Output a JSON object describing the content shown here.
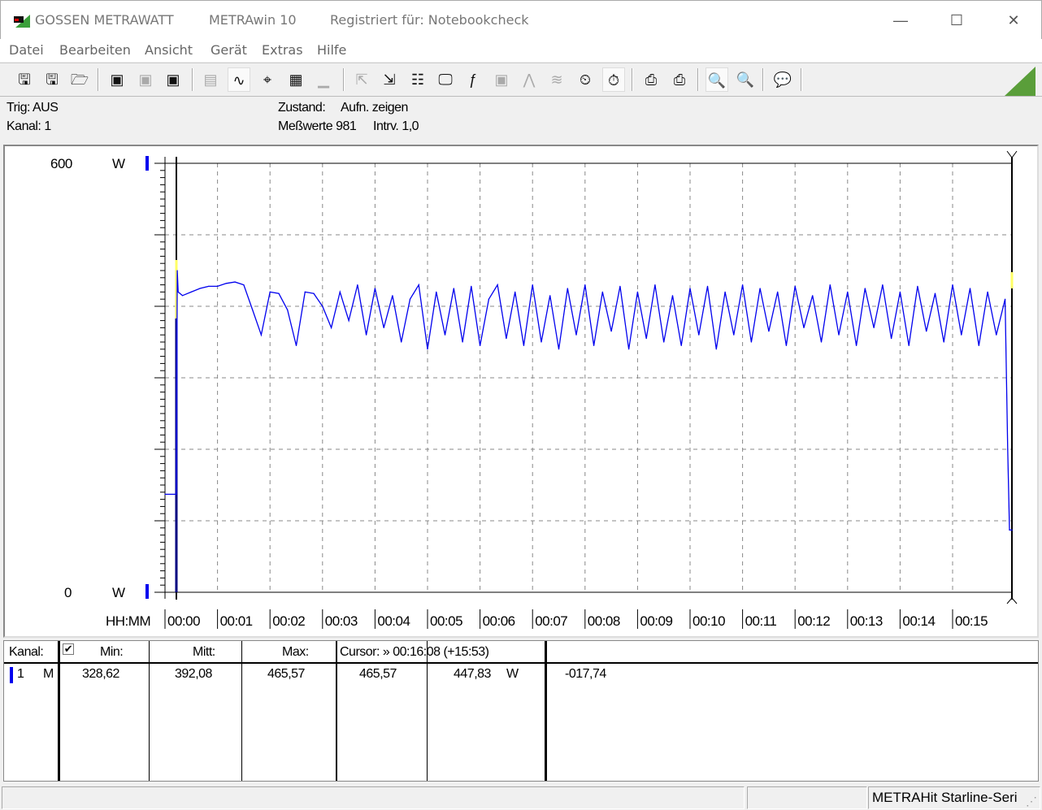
{
  "titlebar": {
    "brand": "GOSSEN METRAWATT",
    "app": "METRAwin 10",
    "registered": "Registriert für: Notebookcheck"
  },
  "menu": [
    "Datei",
    "Bearbeiten",
    "Ansicht",
    "Gerät",
    "Extras",
    "Hilfe"
  ],
  "toolbar": [
    {
      "icon": "save-icon",
      "glyph": "🖫"
    },
    {
      "icon": "save-as-icon",
      "glyph": "🖫"
    },
    {
      "icon": "open-folder-icon",
      "glyph": "🗁"
    },
    {
      "icon": "device-readout-icon",
      "glyph": "▣"
    },
    {
      "icon": "device-clear-icon",
      "glyph": "▣",
      "disabled": true
    },
    {
      "icon": "device-memory-icon",
      "glyph": "▣"
    },
    {
      "icon": "counter-icon",
      "glyph": "▤",
      "disabled": true
    },
    {
      "icon": "waveform-view-icon",
      "glyph": "∿",
      "active": true
    },
    {
      "icon": "crosshair-icon",
      "glyph": "⌖"
    },
    {
      "icon": "table-view-icon",
      "glyph": "▦"
    },
    {
      "icon": "histogram-icon",
      "glyph": "▁",
      "disabled": true
    },
    {
      "icon": "export-icon",
      "glyph": "⇱",
      "disabled": true
    },
    {
      "icon": "import-icon",
      "glyph": "⇲"
    },
    {
      "icon": "device-settings-icon",
      "glyph": "☷"
    },
    {
      "icon": "monitor-icon",
      "glyph": "🖵"
    },
    {
      "icon": "function-icon",
      "glyph": "ƒ"
    },
    {
      "icon": "device-link-icon",
      "glyph": "▣",
      "disabled": true
    },
    {
      "icon": "signal-icon",
      "glyph": "⋀",
      "disabled": true
    },
    {
      "icon": "noise-icon",
      "glyph": "≋",
      "disabled": true
    },
    {
      "icon": "clock-icon",
      "glyph": "⏲"
    },
    {
      "icon": "timer-icon",
      "glyph": "⏱",
      "active": true
    },
    {
      "icon": "print-chart-icon",
      "glyph": "⎙"
    },
    {
      "icon": "print-icon",
      "glyph": "⎙"
    },
    {
      "icon": "zoom-waveform-icon",
      "glyph": "🔍",
      "active": true
    },
    {
      "icon": "zoom-peak-icon",
      "glyph": "🔍"
    },
    {
      "icon": "comment-icon",
      "glyph": "💬"
    }
  ],
  "info": {
    "trig": "Trig: AUS",
    "kanal": "Kanal: 1",
    "zustand_label": "Zustand:",
    "zustand": "Aufn. zeigen",
    "messwerte": "Meßwerte 981",
    "intervall": "Intrv. 1,0"
  },
  "chart_data": {
    "type": "line",
    "xlabel": "HH:MM",
    "ylabel_top": "600",
    "ylabel_bottom": "0",
    "yunit": "W",
    "ylim": [
      0,
      600
    ],
    "xlim_seconds": [
      0,
      968
    ],
    "x_tick_labels": [
      "00:00",
      "00:01",
      "00:02",
      "00:03",
      "00:04",
      "00:05",
      "00:06",
      "00:07",
      "00:08",
      "00:09",
      "00:10",
      "00:11",
      "00:12",
      "00:13",
      "00:14",
      "00:15"
    ],
    "grid": true,
    "color": "#0000ee",
    "x_seconds": [
      0,
      13,
      14,
      15,
      20,
      30,
      40,
      50,
      60,
      70,
      80,
      90,
      100,
      110,
      120,
      130,
      140,
      150,
      160,
      170,
      180,
      190,
      200,
      210,
      220,
      230,
      240,
      250,
      260,
      270,
      280,
      290,
      300,
      310,
      320,
      330,
      340,
      350,
      360,
      370,
      380,
      390,
      400,
      410,
      420,
      430,
      440,
      450,
      460,
      470,
      480,
      490,
      500,
      510,
      520,
      530,
      540,
      550,
      560,
      570,
      580,
      590,
      600,
      610,
      620,
      630,
      640,
      650,
      660,
      670,
      680,
      690,
      700,
      710,
      720,
      730,
      740,
      750,
      760,
      770,
      780,
      790,
      800,
      810,
      820,
      830,
      840,
      850,
      860,
      870,
      880,
      890,
      900,
      910,
      920,
      930,
      940,
      950,
      960,
      963,
      965,
      968
    ],
    "values": [
      137,
      137,
      450,
      420,
      415,
      420,
      425,
      428,
      428,
      432,
      434,
      430,
      395,
      360,
      420,
      418,
      395,
      345,
      420,
      418,
      400,
      370,
      420,
      380,
      430,
      360,
      425,
      370,
      415,
      350,
      410,
      430,
      340,
      420,
      360,
      425,
      350,
      428,
      345,
      410,
      430,
      355,
      420,
      345,
      430,
      350,
      415,
      340,
      425,
      360,
      430,
      345,
      420,
      365,
      428,
      340,
      420,
      355,
      430,
      350,
      415,
      345,
      425,
      360,
      428,
      340,
      420,
      360,
      430,
      350,
      425,
      365,
      420,
      345,
      428,
      370,
      415,
      350,
      430,
      360,
      420,
      345,
      425,
      370,
      430,
      355,
      420,
      345,
      428,
      365,
      418,
      350,
      430,
      360,
      425,
      345,
      420,
      360,
      410,
      200,
      87,
      87
    ]
  },
  "table": {
    "kanal_header": "Kanal:",
    "min_header": "Min:",
    "mitt_header": "Mitt:",
    "max_header": "Max:",
    "cursor_header": "Cursor: » 00:16:08 (+15:53)",
    "row": {
      "channel": "1",
      "mode": "M",
      "min": "328,62",
      "mitt": "392,08",
      "max": "465,57",
      "cursor_value": "465,57",
      "value2": "447,83",
      "unit": "W",
      "delta": "-017,74"
    }
  },
  "status": {
    "device": "METRAHit Starline-Seri"
  }
}
